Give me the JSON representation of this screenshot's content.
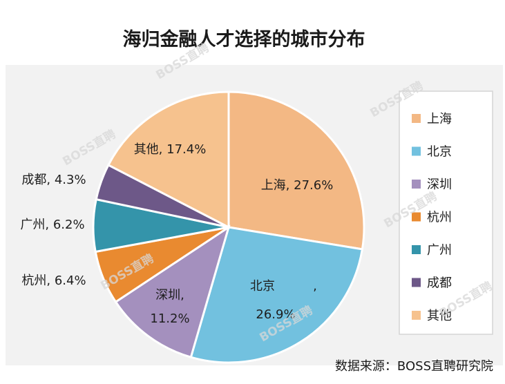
{
  "chart_data": {
    "type": "pie",
    "title": "海归金融人才选择的城市分布",
    "slices": [
      {
        "name": "上海",
        "value": 27.6,
        "color": "#F3B884",
        "label_lines": [
          "上海, 27.6%"
        ]
      },
      {
        "name": "北京",
        "value": 26.9,
        "color": "#72C1DF",
        "label_lines": [
          "北京",
          ",",
          "26.9%"
        ]
      },
      {
        "name": "深圳",
        "value": 11.2,
        "color": "#A490BE",
        "label_lines": [
          "深圳,",
          "11.2%"
        ]
      },
      {
        "name": "杭州",
        "value": 6.4,
        "color": "#E98A30",
        "label_lines": [
          "杭州, 6.4%"
        ]
      },
      {
        "name": "广州",
        "value": 6.2,
        "color": "#3494AA",
        "label_lines": [
          "广州, 6.2%"
        ]
      },
      {
        "name": "成都",
        "value": 4.3,
        "color": "#6D5888",
        "label_lines": [
          "成都, 4.3%"
        ]
      },
      {
        "name": "其他",
        "value": 17.4,
        "color": "#F6C28E",
        "label_lines": [
          "其他, 17.4%"
        ]
      }
    ],
    "legend": {
      "placement": "right",
      "entries": [
        "上海",
        "北京",
        "深圳",
        "杭州",
        "广州",
        "成都",
        "其他"
      ]
    }
  },
  "source_text": "数据来源：BOSS直聘研究院",
  "watermark_text": "BOSS直聘"
}
